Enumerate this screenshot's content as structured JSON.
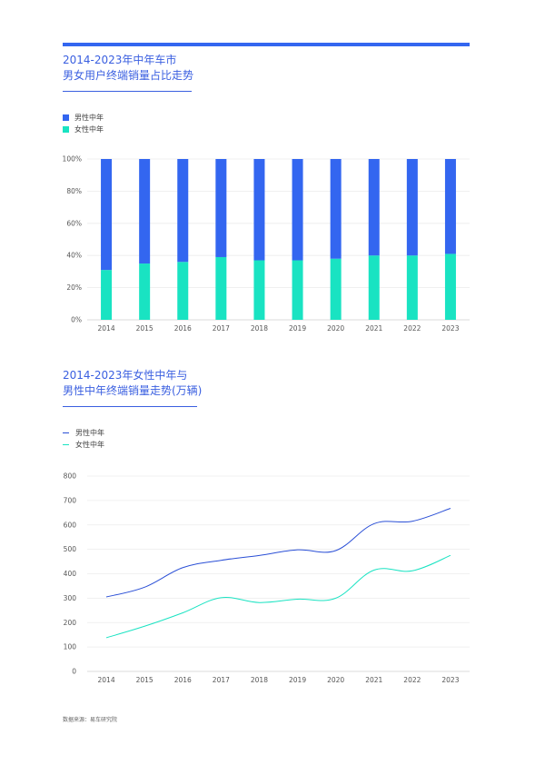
{
  "chart1": {
    "title_line1": "2014-2023年中年车市",
    "title_line2": "男女用户终端销量占比走势",
    "legend": [
      {
        "label": "男性中年",
        "color": "#3366f0"
      },
      {
        "label": "女性中年",
        "color": "#19e3c2"
      }
    ]
  },
  "chart2": {
    "title_line1": "2014-2023年女性中年与",
    "title_line2": "男性中年终端销量走势(万辆)",
    "legend": [
      {
        "label": "男性中年",
        "color": "#2a4fd6"
      },
      {
        "label": "女性中年",
        "color": "#19e3c2"
      }
    ]
  },
  "footer": {
    "source": "数据来源：易车研究院"
  },
  "colors": {
    "accent": "#3366f0",
    "male": "#3366f0",
    "female": "#19e3c2",
    "male_line": "#2a4fd6"
  },
  "chart_data": [
    {
      "type": "bar",
      "stacked": true,
      "title": "2014-2023年中年车市 男女用户终端销量占比走势",
      "categories": [
        "2014",
        "2015",
        "2016",
        "2017",
        "2018",
        "2019",
        "2020",
        "2021",
        "2022",
        "2023"
      ],
      "series": [
        {
          "name": "女性中年",
          "values": [
            31,
            35,
            36,
            39,
            37,
            37,
            38,
            40,
            40,
            41
          ]
        },
        {
          "name": "男性中年",
          "values": [
            69,
            65,
            64,
            61,
            63,
            63,
            62,
            60,
            60,
            59
          ]
        }
      ],
      "ylim": [
        0,
        100
      ],
      "yticks": [
        "0%",
        "20%",
        "40%",
        "60%",
        "80%",
        "100%"
      ],
      "yunit": "%",
      "grid": true,
      "legend_position": "top-left"
    },
    {
      "type": "line",
      "title": "2014-2023年女性中年与男性中年终端销量走势(万辆)",
      "categories": [
        "2014",
        "2015",
        "2016",
        "2017",
        "2018",
        "2019",
        "2020",
        "2021",
        "2022",
        "2023"
      ],
      "series": [
        {
          "name": "男性中年",
          "values": [
            305,
            345,
            425,
            455,
            475,
            498,
            495,
            605,
            615,
            668
          ]
        },
        {
          "name": "女性中年",
          "values": [
            138,
            185,
            240,
            302,
            282,
            296,
            300,
            415,
            412,
            475
          ]
        }
      ],
      "ylim": [
        0,
        800
      ],
      "yticks": [
        "0",
        "100",
        "200",
        "300",
        "400",
        "500",
        "600",
        "700",
        "800"
      ],
      "grid": true,
      "legend_position": "top-left"
    }
  ]
}
